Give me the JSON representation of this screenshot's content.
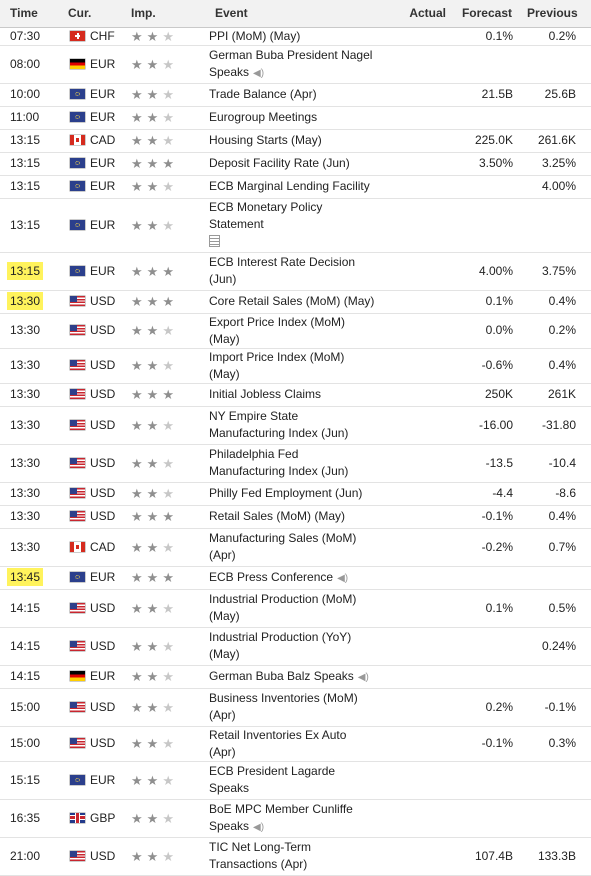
{
  "headers": {
    "time": "Time",
    "cur": "Cur.",
    "imp": "Imp.",
    "event": "Event",
    "actual": "Actual",
    "forecast": "Forecast",
    "previous": "Previous"
  },
  "rows": [
    {
      "time": "07:30",
      "cur": "CHF",
      "flag": "ch-flag",
      "stars": 2,
      "event": "PPI (MoM) (May)",
      "actual": "",
      "forecast": "0.1%",
      "previous": "0.2%"
    },
    {
      "time": "08:00",
      "cur": "EUR",
      "flag": "de-flag",
      "stars": 2,
      "event": "German Buba President Nagel Speaks",
      "icon": "speaker",
      "actual": "",
      "forecast": "",
      "previous": ""
    },
    {
      "time": "10:00",
      "cur": "EUR",
      "flag": "eu-flag",
      "stars": 2,
      "event": "Trade Balance (Apr)",
      "actual": "",
      "forecast": "21.5B",
      "previous": "25.6B"
    },
    {
      "time": "11:00",
      "cur": "EUR",
      "flag": "eu-flag",
      "stars": 2,
      "event": "Eurogroup Meetings",
      "actual": "",
      "forecast": "",
      "previous": ""
    },
    {
      "time": "13:15",
      "cur": "CAD",
      "flag": "ca-flag",
      "stars": 2,
      "event": "Housing Starts (May)",
      "actual": "",
      "forecast": "225.0K",
      "previous": "261.6K"
    },
    {
      "time": "13:15",
      "cur": "EUR",
      "flag": "eu-flag",
      "stars": 3,
      "event": "Deposit Facility Rate (Jun)",
      "actual": "",
      "forecast": "3.50%",
      "previous": "3.25%"
    },
    {
      "time": "13:15",
      "cur": "EUR",
      "flag": "eu-flag",
      "stars": 2,
      "event": "ECB Marginal Lending Facility",
      "actual": "",
      "forecast": "",
      "previous": "4.00%"
    },
    {
      "time": "13:15",
      "cur": "EUR",
      "flag": "eu-flag",
      "stars": 2,
      "event": "ECB Monetary Policy Statement",
      "icon": "document",
      "actual": "",
      "forecast": "",
      "previous": ""
    },
    {
      "time": "13:15",
      "cur": "EUR",
      "flag": "eu-flag",
      "stars": 3,
      "event": "ECB Interest Rate Decision (Jun)",
      "actual": "",
      "forecast": "4.00%",
      "previous": "3.75%",
      "highlight": true
    },
    {
      "time": "13:30",
      "cur": "USD",
      "flag": "us-flag",
      "stars": 3,
      "event": "Core Retail Sales (MoM) (May)",
      "actual": "",
      "forecast": "0.1%",
      "previous": "0.4%",
      "highlight": true
    },
    {
      "time": "13:30",
      "cur": "USD",
      "flag": "us-flag",
      "stars": 2,
      "event": "Export Price Index (MoM) (May)",
      "actual": "",
      "forecast": "0.0%",
      "previous": "0.2%"
    },
    {
      "time": "13:30",
      "cur": "USD",
      "flag": "us-flag",
      "stars": 2,
      "event": "Import Price Index (MoM) (May)",
      "actual": "",
      "forecast": "-0.6%",
      "previous": "0.4%"
    },
    {
      "time": "13:30",
      "cur": "USD",
      "flag": "us-flag",
      "stars": 3,
      "event": "Initial Jobless Claims",
      "actual": "",
      "forecast": "250K",
      "previous": "261K"
    },
    {
      "time": "13:30",
      "cur": "USD",
      "flag": "us-flag",
      "stars": 2,
      "event": "NY Empire State Manufacturing Index (Jun)",
      "actual": "",
      "forecast": "-16.00",
      "previous": "-31.80"
    },
    {
      "time": "13:30",
      "cur": "USD",
      "flag": "us-flag",
      "stars": 2,
      "event": "Philadelphia Fed Manufacturing Index (Jun)",
      "actual": "",
      "forecast": "-13.5",
      "previous": "-10.4"
    },
    {
      "time": "13:30",
      "cur": "USD",
      "flag": "us-flag",
      "stars": 2,
      "event": "Philly Fed Employment (Jun)",
      "actual": "",
      "forecast": "-4.4",
      "previous": "-8.6"
    },
    {
      "time": "13:30",
      "cur": "USD",
      "flag": "us-flag",
      "stars": 3,
      "event": "Retail Sales (MoM) (May)",
      "actual": "",
      "forecast": "-0.1%",
      "previous": "0.4%"
    },
    {
      "time": "13:30",
      "cur": "CAD",
      "flag": "ca-flag",
      "stars": 2,
      "event": "Manufacturing Sales (MoM) (Apr)",
      "actual": "",
      "forecast": "-0.2%",
      "previous": "0.7%"
    },
    {
      "time": "13:45",
      "cur": "EUR",
      "flag": "eu-flag",
      "stars": 3,
      "event": "ECB Press Conference",
      "icon": "speaker",
      "actual": "",
      "forecast": "",
      "previous": "",
      "highlight": true
    },
    {
      "time": "14:15",
      "cur": "USD",
      "flag": "us-flag",
      "stars": 2,
      "event": "Industrial Production (MoM) (May)",
      "actual": "",
      "forecast": "0.1%",
      "previous": "0.5%"
    },
    {
      "time": "14:15",
      "cur": "USD",
      "flag": "us-flag",
      "stars": 2,
      "event": "Industrial Production (YoY) (May)",
      "actual": "",
      "forecast": "",
      "previous": "0.24%"
    },
    {
      "time": "14:15",
      "cur": "EUR",
      "flag": "de-flag",
      "stars": 2,
      "event": "German Buba Balz Speaks",
      "icon": "speaker",
      "actual": "",
      "forecast": "",
      "previous": ""
    },
    {
      "time": "15:00",
      "cur": "USD",
      "flag": "us-flag",
      "stars": 2,
      "event": "Business Inventories (MoM) (Apr)",
      "actual": "",
      "forecast": "0.2%",
      "previous": "-0.1%"
    },
    {
      "time": "15:00",
      "cur": "USD",
      "flag": "us-flag",
      "stars": 2,
      "event": "Retail Inventories Ex Auto (Apr)",
      "actual": "",
      "forecast": "-0.1%",
      "previous": "0.3%"
    },
    {
      "time": "15:15",
      "cur": "EUR",
      "flag": "eu-flag",
      "stars": 2,
      "event": "ECB President Lagarde Speaks",
      "actual": "",
      "forecast": "",
      "previous": ""
    },
    {
      "time": "16:35",
      "cur": "GBP",
      "flag": "gb-flag",
      "stars": 2,
      "event": "BoE MPC Member Cunliffe Speaks",
      "icon": "speaker",
      "actual": "",
      "forecast": "",
      "previous": ""
    },
    {
      "time": "21:00",
      "cur": "USD",
      "flag": "us-flag",
      "stars": 2,
      "event": "TIC Net Long-Term Transactions (Apr)",
      "actual": "",
      "forecast": "107.4B",
      "previous": "133.3B"
    }
  ],
  "colors": {
    "highlight": "#fff35c",
    "star_on": "#8f8f8f",
    "star_off": "#c7c7c7",
    "header_bg": "#f2f2f2"
  }
}
